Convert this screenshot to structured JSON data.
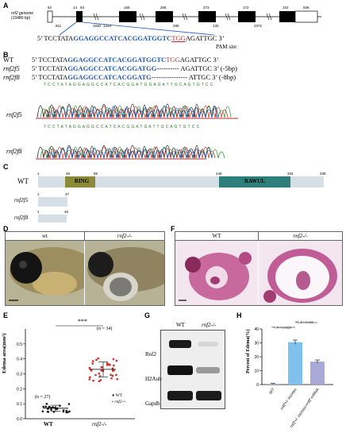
{
  "panelA": {
    "label": "A",
    "genome": "rnf2 genome",
    "length": "(10480 bp)",
    "top_nums": [
      "82",
      "14",
      "93",
      "165",
      "256",
      "273",
      "172",
      "102",
      "936"
    ],
    "bottom_nums": [
      "811",
      "1930",
      "1243",
      "285",
      "130",
      "2372"
    ],
    "seq_prefix": "5’ TCCTATA",
    "seq_blue": "GGAGGCCATCACGGATGGTC",
    "seq_tgg": "TGG",
    "seq_suffix": "AGATTGC 3’",
    "pam": "PAM site"
  },
  "panelB": {
    "label": "B",
    "rows": [
      {
        "name": "WT",
        "prefix": "5’ TCCTATA",
        "blue": "GGAGGCCATCACGGATGGTC",
        "red": "TGG",
        "suffix": "AGATTGC 3’",
        "note": ""
      },
      {
        "name": "rnf2f5",
        "prefix": "5’ TCCTATA",
        "blue": "GGAGGCCATCACGGATGG",
        "red": "",
        "suffix": "---------- AGATTGC 3’",
        "note": "(-5bp)"
      },
      {
        "name": "rnf2f8",
        "prefix": "5’ TCCTATA",
        "blue": "GGAGGCCATCACGGATG",
        "red": "",
        "suffix": "---------------- ATTGC 3’",
        "note": "(-8bp)"
      }
    ],
    "chrom1_seq": "T C C T A T A G G A G G C C A T C A C G G A T G G A G A T T G C A G T G T C C",
    "chrom2_seq": "T C C T A T A G G A G G C C A T C A C G G A T G A T T G C A G T G T C C",
    "chrom1_label": "rnf2f5",
    "chrom2_label": "rnf2f8"
  },
  "panelC": {
    "label": "C",
    "wt": "WT",
    "nums": [
      "1",
      "49",
      "95",
      "248",
      "332",
      "338"
    ],
    "ring": "RING",
    "rawul": "RAWUL",
    "f5_nums": [
      "1",
      "47"
    ],
    "f8_nums": [
      "1",
      "46"
    ],
    "f5_label": "rnf2f5",
    "f8_label": "rnf2f8"
  },
  "panelD": {
    "label": "D",
    "wt": "wt",
    "mut": "rnf2-/-"
  },
  "panelF": {
    "label": "F",
    "wt": "WT",
    "mut": "rnf2-/-"
  },
  "panelE": {
    "label": "E",
    "stars": "***",
    "n_wt": "(n = 27)",
    "n_mut": "(n = 34)",
    "legend_wt": "WT",
    "legend_mut": "rnf2-/-",
    "ylabel": "Edema area(mm²)"
  },
  "panelG": {
    "label": "G",
    "col_wt": "WT",
    "col_mut": "rnf2-/-",
    "rows": [
      "Rnf2",
      "H2Aub",
      "Gapdh"
    ]
  },
  "panelH": {
    "label": "H",
    "ylabel": "Percent of Edema(%)",
    "sig1": "**, P = 0.0029",
    "sig2": "**, P = 0.005"
  },
  "chart_data": [
    {
      "type": "scatter",
      "title": "",
      "xlabel": "",
      "ylabel": "Edema area(mm²)",
      "ylim": [
        0,
        0.6
      ],
      "yticks": [
        0.0,
        0.1,
        0.2,
        0.3,
        0.4,
        0.5
      ],
      "categories": [
        "WT",
        "rnf2-/-"
      ],
      "series": [
        {
          "name": "WT",
          "mean": 0.07,
          "sd": 0.02,
          "n": 27
        },
        {
          "name": "rnf2-/-",
          "mean": 0.33,
          "sd": 0.05,
          "n": 34
        }
      ]
    },
    {
      "type": "bar",
      "title": "",
      "ylabel": "Percent of Edema(%)",
      "ylim": [
        0,
        40
      ],
      "yticks": [
        0,
        10,
        20,
        30,
        40
      ],
      "categories": [
        "WT",
        "rnf2+/- incross",
        "rnf2+/- incross+rnf2 mRNA"
      ],
      "values": [
        0.5,
        30.5,
        16.5
      ],
      "errors": [
        0.3,
        1.5,
        1.2
      ],
      "colors": [
        "#9fb7dd",
        "#7fc0ec",
        "#a9a8d6"
      ]
    }
  ]
}
